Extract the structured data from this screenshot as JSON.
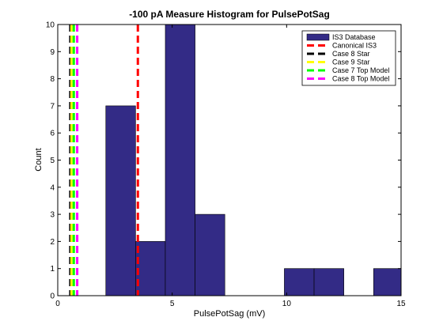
{
  "chart_data": {
    "type": "bar",
    "title": "-100 pA Measure Histogram for PulsePotSag",
    "xlabel": "PulsePotSag (mV)",
    "ylabel": "Count",
    "xlim": [
      0,
      15
    ],
    "ylim": [
      0,
      10
    ],
    "xticks": [
      0,
      5,
      10,
      15
    ],
    "yticks": [
      0,
      1,
      2,
      3,
      4,
      5,
      6,
      7,
      8,
      9,
      10
    ],
    "histogram": {
      "name": "IS3 Database",
      "color": "#332b86",
      "bins": [
        {
          "x0": 2.1,
          "x1": 3.4,
          "count": 7
        },
        {
          "x0": 3.4,
          "x1": 4.7,
          "count": 2
        },
        {
          "x0": 4.7,
          "x1": 6.0,
          "count": 10
        },
        {
          "x0": 6.0,
          "x1": 7.3,
          "count": 3
        },
        {
          "x0": 7.3,
          "x1": 8.6,
          "count": 0
        },
        {
          "x0": 8.6,
          "x1": 9.9,
          "count": 0
        },
        {
          "x0": 9.9,
          "x1": 11.2,
          "count": 1
        },
        {
          "x0": 11.2,
          "x1": 12.5,
          "count": 1
        },
        {
          "x0": 12.5,
          "x1": 13.8,
          "count": 0
        },
        {
          "x0": 13.8,
          "x1": 15.1,
          "count": 1
        }
      ]
    },
    "reference_lines": [
      {
        "name": "Canonical IS3",
        "x": 3.5,
        "color": "#ff0000"
      },
      {
        "name": "Case 8 Star",
        "x": 0.55,
        "color": "#000000"
      },
      {
        "name": "Case 9 Star",
        "x": 0.6,
        "color": "#ffff00"
      },
      {
        "name": "Case 7 Top Model",
        "x": 0.7,
        "color": "#00ff00"
      },
      {
        "name": "Case 8 Top Model",
        "x": 0.85,
        "color": "#ff00ff"
      }
    ],
    "legend": {
      "placement": "top-right",
      "entries": [
        "IS3 Database",
        "Canonical IS3",
        "Case 8 Star",
        "Case 9 Star",
        "Case 7 Top Model",
        "Case 8 Top Model"
      ]
    },
    "grid": false
  }
}
